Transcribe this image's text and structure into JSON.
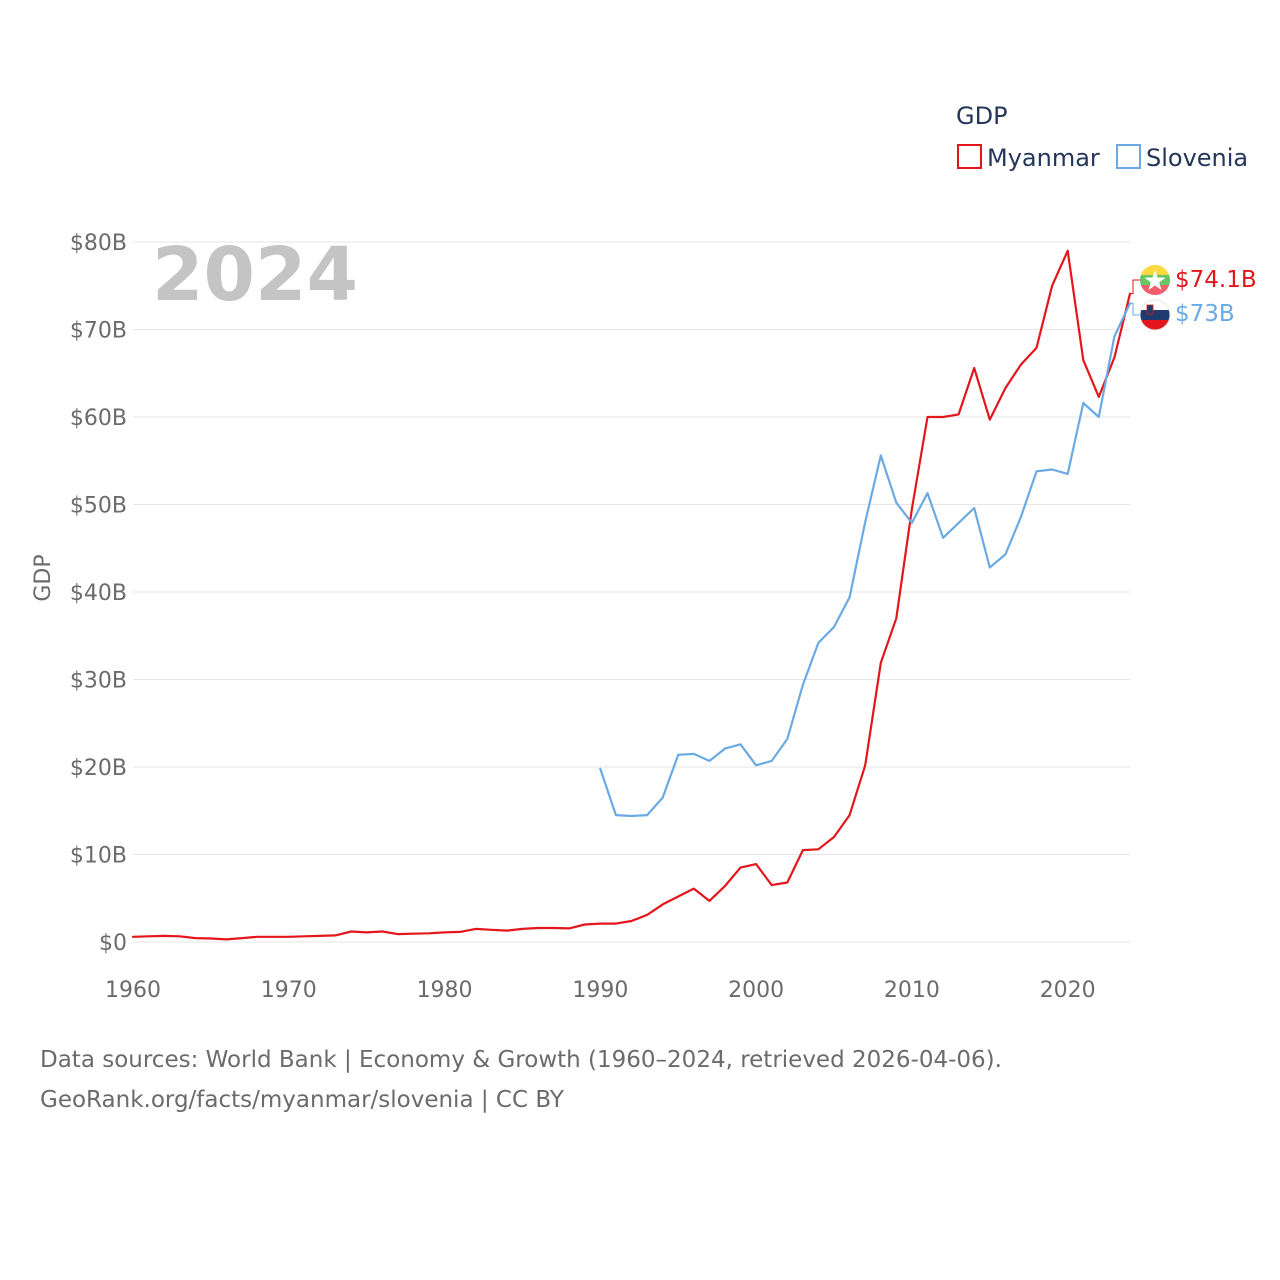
{
  "chart_data": {
    "type": "line",
    "ylabel": "GDP",
    "legend_title": "GDP",
    "highlight_year": "2024",
    "ylim": [
      0,
      80
    ],
    "xlim": [
      1960,
      2024
    ],
    "y_ticks": [
      {
        "value": 0,
        "label": "$0"
      },
      {
        "value": 10,
        "label": "$10B"
      },
      {
        "value": 20,
        "label": "$20B"
      },
      {
        "value": 30,
        "label": "$30B"
      },
      {
        "value": 40,
        "label": "$40B"
      },
      {
        "value": 50,
        "label": "$50B"
      },
      {
        "value": 60,
        "label": "$60B"
      },
      {
        "value": 70,
        "label": "$70B"
      },
      {
        "value": 80,
        "label": "$80B"
      }
    ],
    "x_ticks": [
      {
        "value": 1960,
        "label": "1960"
      },
      {
        "value": 1970,
        "label": "1970"
      },
      {
        "value": 1980,
        "label": "1980"
      },
      {
        "value": 1990,
        "label": "1990"
      },
      {
        "value": 2000,
        "label": "2000"
      },
      {
        "value": 2010,
        "label": "2010"
      },
      {
        "value": 2020,
        "label": "2020"
      }
    ],
    "series": [
      {
        "name": "Myanmar",
        "color": "#e3161b",
        "end_label": "$74.1B",
        "start_year": 1960,
        "values": [
          0.6,
          0.65,
          0.7,
          0.65,
          0.45,
          0.4,
          0.3,
          0.45,
          0.6,
          0.6,
          0.6,
          0.65,
          0.7,
          0.75,
          1.2,
          1.1,
          1.2,
          0.9,
          0.95,
          1.0,
          1.1,
          1.15,
          1.5,
          1.4,
          1.3,
          1.5,
          1.6,
          1.6,
          1.55,
          2.0,
          2.1,
          2.1,
          2.4,
          3.1,
          4.3,
          5.2,
          6.1,
          4.7,
          6.4,
          8.5,
          8.9,
          6.5,
          6.8,
          10.5,
          10.6,
          12.0,
          14.5,
          20.2,
          31.9,
          37.0,
          49.5,
          60.0,
          60.0,
          60.3,
          65.6,
          59.7,
          63.3,
          66.0,
          67.9,
          75.0,
          79.0,
          66.5,
          62.3,
          66.8,
          74.1
        ]
      },
      {
        "name": "Slovenia",
        "color": "#6aaae4",
        "end_label": "$73B",
        "start_year": 1990,
        "values": [
          19.8,
          14.5,
          14.4,
          14.5,
          16.5,
          21.4,
          21.5,
          20.7,
          22.1,
          22.6,
          20.2,
          20.7,
          23.2,
          29.4,
          34.2,
          36.0,
          39.4,
          48.0,
          55.6,
          50.2,
          47.9,
          51.3,
          46.2,
          47.9,
          49.6,
          42.8,
          44.3,
          48.6,
          53.8,
          54.0,
          53.5,
          61.6,
          60.0,
          69.2,
          73.0
        ]
      }
    ]
  },
  "source": {
    "line1": "Data sources: World Bank | Economy & Growth (1960–2024, retrieved 2026-04-06).",
    "line2": "GeoRank.org/facts/myanmar/slovenia | CC BY"
  }
}
